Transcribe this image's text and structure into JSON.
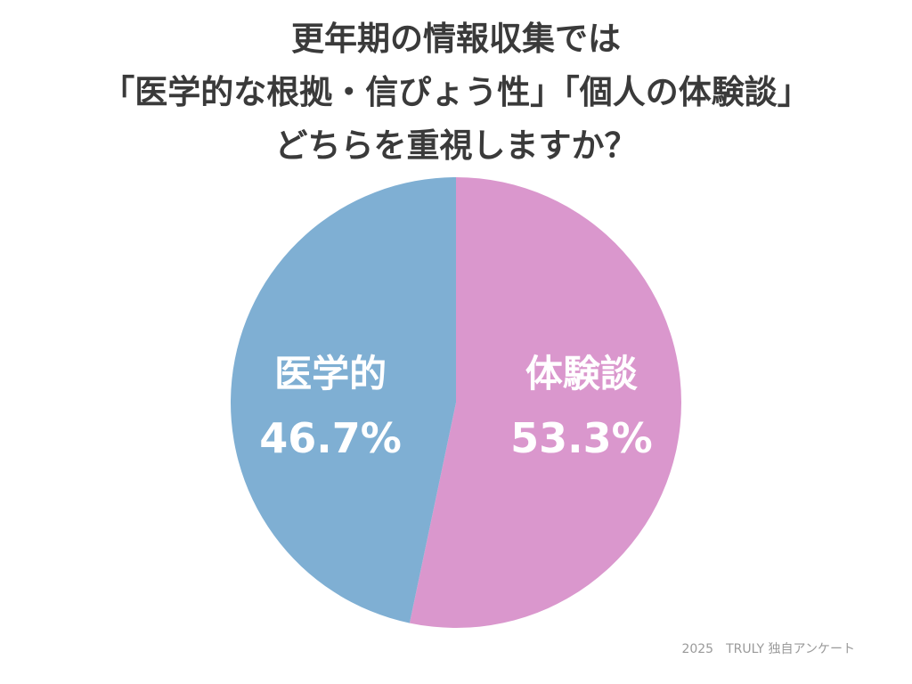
{
  "chart_data": {
    "type": "pie",
    "title_lines": [
      "更年期の情報収集では",
      "「医学的な根拠・信ぴょう性」「個人の体験談」",
      "どちらを重視しますか？"
    ],
    "slices": [
      {
        "label": "体験談",
        "value": 53.3,
        "value_label": "53.3%",
        "color": "#da97cd"
      },
      {
        "label": "医学的",
        "value": 46.7,
        "value_label": "46.7%",
        "color": "#7fafd3"
      }
    ],
    "start": "top",
    "direction": "clockwise"
  },
  "footer": {
    "source": "2025　TRULY 独自アンケート"
  }
}
